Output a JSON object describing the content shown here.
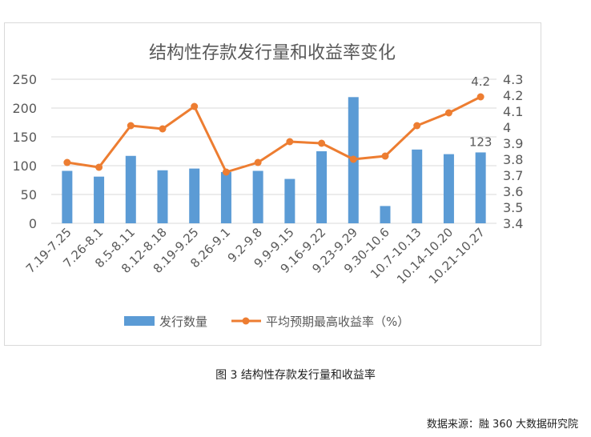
{
  "caption": "图 3 结构性存款发行量和收益率",
  "source": "数据来源：融 360 大数据研究院",
  "colors": {
    "bar": "#5b9bd5",
    "line": "#ed7d31",
    "grid": "#d9d9d9",
    "text": "#595959"
  },
  "chart_data": {
    "type": "bar+line",
    "title": "结构性存款发行量和收益率变化",
    "categories": [
      "7.19-7.25",
      "7.26-8.1",
      "8.5-8.11",
      "8.12-8.18",
      "8.19-9.25",
      "8.26-9.1",
      "9.2-9.8",
      "9.9-9.15",
      "9.16-9.22",
      "9.23-9.29",
      "9.30-10.6",
      "10.7-10.13",
      "10.14-10.20",
      "10.21-10.27"
    ],
    "series": [
      {
        "name": "发行数量",
        "type": "bar",
        "axis": "left",
        "values": [
          91,
          81,
          117,
          92,
          95,
          89,
          91,
          77,
          125,
          219,
          30,
          128,
          120,
          123
        ]
      },
      {
        "name": "平均预期最高收益率（%）",
        "type": "line",
        "axis": "right",
        "values": [
          3.78,
          3.75,
          4.01,
          3.99,
          4.13,
          3.72,
          3.78,
          3.91,
          3.9,
          3.8,
          3.82,
          4.01,
          4.09,
          4.19
        ]
      }
    ],
    "left_axis": {
      "min": 0,
      "max": 250,
      "ticks": [
        "0",
        "50",
        "100",
        "150",
        "200",
        "250"
      ]
    },
    "right_axis": {
      "min": 3.4,
      "max": 4.3,
      "ticks": [
        "3.4",
        "3.5",
        "3.6",
        "3.7",
        "3.8",
        "3.9",
        "4",
        "4.1",
        "4.2",
        "4.3"
      ]
    },
    "data_labels": {
      "bar_last": "123",
      "line_last": "4.2"
    },
    "legend_position": "bottom",
    "grid": true
  }
}
